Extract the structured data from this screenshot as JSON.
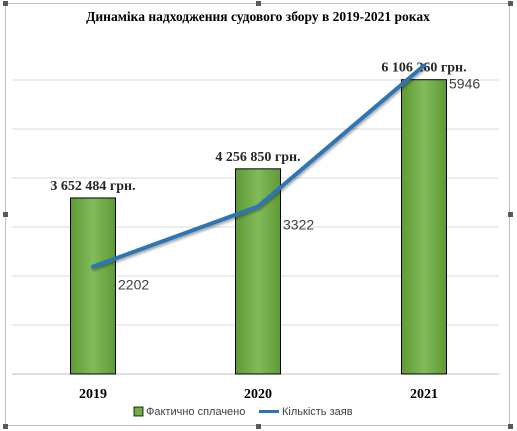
{
  "chart_data": {
    "type": "bar",
    "title": "Динаміка надходження судового збору в 2019-2021 роках",
    "categories": [
      "2019",
      "2020",
      "2021"
    ],
    "series": [
      {
        "name": "Фактично сплачено",
        "type": "bar",
        "values": [
          3652484,
          4256850,
          6106260
        ],
        "labels": [
          "3 652 484 грн.",
          "4 256 850 грн.",
          "6 106 260 грн."
        ],
        "color": "#70ad47"
      },
      {
        "name": "Кількість заяв",
        "type": "line",
        "values": [
          2202,
          3322,
          5946
        ],
        "labels": [
          "2202",
          "3322",
          "5946"
        ],
        "color": "#2e75b6"
      }
    ],
    "grid": true,
    "legend_position": "bottom"
  }
}
